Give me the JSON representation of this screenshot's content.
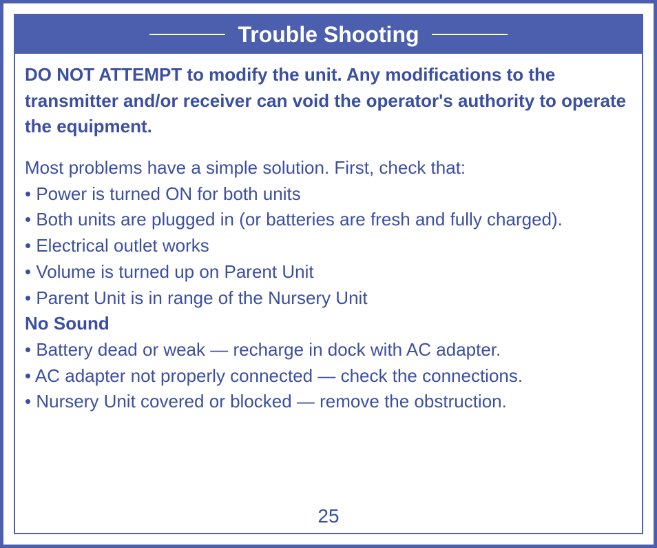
{
  "title": "Trouble Shooting",
  "warning": "DO NOT ATTEMPT to modify the unit. Any modifications to the transmitter and/or receiver can void the operator's authority to operate the equipment.",
  "intro": "Most problems have a simple solution. First, check that:",
  "checks": [
    "• Power is turned ON for both units",
    "• Both units are plugged in (or batteries are fresh and fully charged).",
    "• Electrical outlet works",
    "• Volume is turned up on Parent Unit",
    "• Parent Unit is in range of the Nursery Unit"
  ],
  "section": {
    "heading": "No Sound",
    "items": [
      "• Battery dead or weak — recharge in dock with AC adapter.",
      "• AC adapter not properly connected — check the connections.",
      "• Nursery Unit covered or blocked — remove the obstruction."
    ]
  },
  "page_number": "25",
  "colors": {
    "frame": "#4b5fae",
    "text": "#3b4fa0",
    "title_bg": "#4b5fae",
    "title_text": "#ffffff",
    "background": "#ffffff"
  },
  "typography": {
    "title_fontsize": 32,
    "title_weight": 700,
    "body_fontsize": 26,
    "warning_weight": 700,
    "page_fontsize": 28
  }
}
